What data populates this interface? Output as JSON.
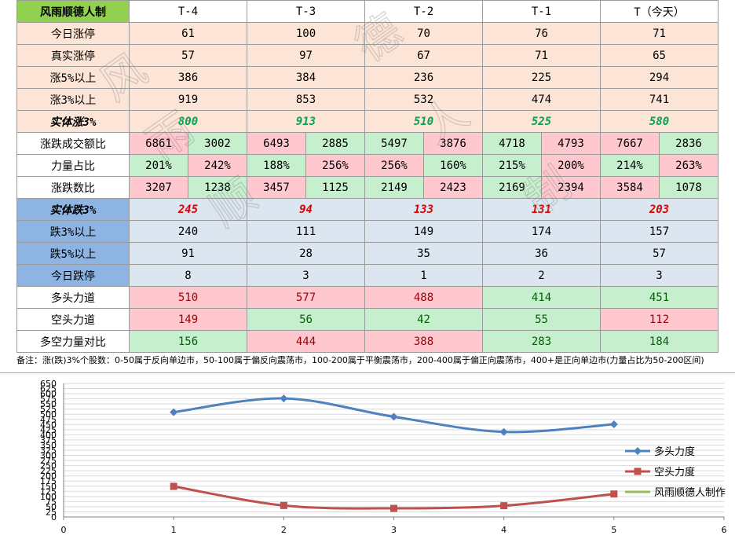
{
  "table": {
    "title": "风雨顺德人制",
    "headers": [
      "T-4",
      "T-3",
      "T-2",
      "T-1",
      "T（今天）"
    ],
    "up_rows": [
      {
        "label": "今日涨停",
        "values": [
          "61",
          "100",
          "70",
          "76",
          "71"
        ]
      },
      {
        "label": "真实涨停",
        "values": [
          "57",
          "97",
          "67",
          "71",
          "65"
        ]
      },
      {
        "label": "涨5%以上",
        "values": [
          "386",
          "384",
          "236",
          "225",
          "294"
        ]
      },
      {
        "label": "涨3%以上",
        "values": [
          "919",
          "853",
          "532",
          "474",
          "741"
        ]
      }
    ],
    "entity_up": {
      "label": "实体涨3%",
      "values": [
        "800",
        "913",
        "510",
        "525",
        "580"
      ]
    },
    "pair_rows": [
      {
        "label": "涨跌成交额比",
        "pairs": [
          [
            "6861",
            "3002"
          ],
          [
            "6493",
            "2885"
          ],
          [
            "5497",
            "3876"
          ],
          [
            "4718",
            "4793"
          ],
          [
            "7667",
            "2836"
          ]
        ]
      },
      {
        "label": "力量占比",
        "pairs": [
          [
            "201%",
            "242%"
          ],
          [
            "188%",
            "256%"
          ],
          [
            "256%",
            "160%"
          ],
          [
            "215%",
            "200%"
          ],
          [
            "214%",
            "263%"
          ]
        ]
      },
      {
        "label": "涨跌数比",
        "pairs": [
          [
            "3207",
            "1238"
          ],
          [
            "3457",
            "1125"
          ],
          [
            "2149",
            "2423"
          ],
          [
            "2169",
            "2394"
          ],
          [
            "3584",
            "1078"
          ]
        ]
      }
    ],
    "entity_down": {
      "label": "实体跌3%",
      "values": [
        "245",
        "94",
        "133",
        "131",
        "203"
      ]
    },
    "down_rows": [
      {
        "label": "跌3%以上",
        "values": [
          "240",
          "111",
          "149",
          "174",
          "157"
        ]
      },
      {
        "label": "跌5%以上",
        "values": [
          "91",
          "28",
          "35",
          "36",
          "57"
        ]
      },
      {
        "label": "今日跌停",
        "values": [
          "8",
          "3",
          "1",
          "2",
          "3"
        ]
      }
    ],
    "force_rows": [
      {
        "label": "多头力道",
        "values": [
          "510",
          "577",
          "488",
          "414",
          "451"
        ]
      },
      {
        "label": "空头力道",
        "values": [
          "149",
          "56",
          "42",
          "55",
          "112"
        ]
      },
      {
        "label": "多空力量对比",
        "values": [
          "156",
          "444",
          "388",
          "283",
          "184"
        ]
      }
    ],
    "note": "备注：涨(跌)3%个股数：0-50属于反向单边市，50-100属于偏反向震荡市，100-200属于平衡震荡市，200-400属于偏正向震荡市，400+是正向单边市(力量占比为50-200区间)"
  },
  "watermark_text": "风雨顺德人制",
  "colors": {
    "title_green": "#92d050",
    "up_orange": "#fce4d6",
    "down_blue": "#dce6f1",
    "label_blue": "#8db4e2",
    "pink": "#ffc7ce",
    "green": "#c6efce",
    "series_bull": "#4f81bd",
    "series_bear": "#c0504d",
    "series_third": "#9bbb59"
  },
  "chart_data": {
    "type": "line",
    "title": "",
    "xlabel": "",
    "ylabel": "",
    "xlim": [
      0,
      6
    ],
    "ylim": [
      0,
      650
    ],
    "x_ticks": [
      "0",
      "1",
      "2",
      "3",
      "4",
      "5",
      "6"
    ],
    "y_ticks": [
      "0",
      "25",
      "50",
      "75",
      "100",
      "125",
      "150",
      "175",
      "200",
      "225",
      "250",
      "275",
      "300",
      "325",
      "350",
      "375",
      "400",
      "425",
      "450",
      "475",
      "500",
      "525",
      "550",
      "575",
      "600",
      "625",
      "650"
    ],
    "grid": true,
    "legend_position": "right",
    "series": [
      {
        "name": "多头力度",
        "x": [
          1,
          2,
          3,
          4,
          5
        ],
        "values": [
          510,
          577,
          488,
          414,
          451
        ],
        "color": "#4f81bd",
        "marker": "diamond"
      },
      {
        "name": "空头力度",
        "x": [
          1,
          2,
          3,
          4,
          5
        ],
        "values": [
          149,
          56,
          42,
          55,
          112
        ],
        "color": "#c0504d",
        "marker": "square"
      },
      {
        "name": "风雨顺德人制作",
        "x": [],
        "values": [],
        "color": "#9bbb59",
        "marker": "none"
      }
    ]
  }
}
